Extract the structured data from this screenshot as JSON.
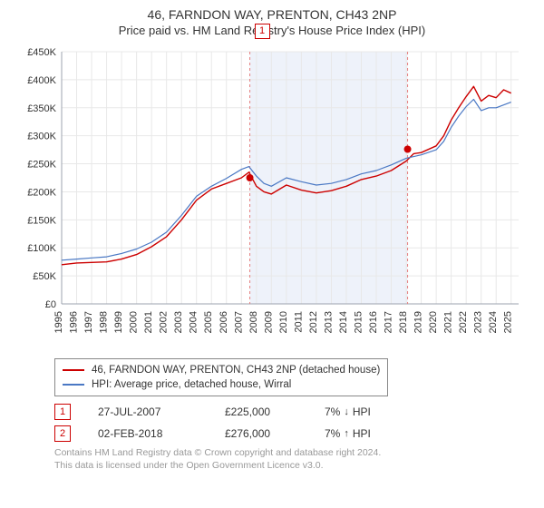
{
  "title": "46, FARNDON WAY, PRENTON, CH43 2NP",
  "subtitle": "Price paid vs. HM Land Registry's House Price Index (HPI)",
  "chart": {
    "type": "line",
    "background_color": "#ffffff",
    "grid_color": "#e8e8e8",
    "band_color": "#eef2fa",
    "x_years": [
      1995,
      1996,
      1997,
      1998,
      1999,
      2000,
      2001,
      2002,
      2003,
      2004,
      2005,
      2006,
      2007,
      2008,
      2009,
      2010,
      2011,
      2012,
      2013,
      2014,
      2015,
      2016,
      2017,
      2018,
      2019,
      2020,
      2021,
      2022,
      2023,
      2024,
      2025
    ],
    "x_range": [
      1995,
      2025.5
    ],
    "ylim": [
      0,
      450000
    ],
    "ytick_step": 50000,
    "yticklabels": [
      "£0",
      "£50K",
      "£100K",
      "£150K",
      "£200K",
      "£250K",
      "£300K",
      "£350K",
      "£400K",
      "£450K"
    ],
    "series": [
      {
        "name": "46, FARNDON WAY, PRENTON, CH43 2NP (detached house)",
        "color": "#cc0000",
        "width": 1.4,
        "x": [
          1995,
          1996,
          1997,
          1998,
          1999,
          2000,
          2001,
          2002,
          2003,
          2004,
          2005,
          2006,
          2007,
          2007.5,
          2008,
          2008.5,
          2009,
          2010,
          2011,
          2012,
          2013,
          2014,
          2015,
          2016,
          2017,
          2018,
          2018.5,
          2019,
          2020,
          2020.5,
          2021,
          2021.5,
          2022,
          2022.5,
          2023,
          2023.5,
          2024,
          2024.5,
          2025
        ],
        "y": [
          70000,
          73000,
          74000,
          75000,
          80000,
          88000,
          102000,
          120000,
          150000,
          185000,
          205000,
          215000,
          225000,
          235000,
          210000,
          200000,
          196000,
          212000,
          203000,
          198000,
          202000,
          210000,
          222000,
          228000,
          238000,
          255000,
          268000,
          270000,
          282000,
          300000,
          328000,
          350000,
          370000,
          388000,
          362000,
          372000,
          368000,
          382000,
          376000
        ]
      },
      {
        "name": "HPI: Average price, detached house, Wirral",
        "color": "#4a78c4",
        "width": 1.2,
        "x": [
          1995,
          1996,
          1997,
          1998,
          1999,
          2000,
          2001,
          2002,
          2003,
          2004,
          2005,
          2006,
          2007,
          2007.5,
          2008,
          2008.5,
          2009,
          2010,
          2011,
          2012,
          2013,
          2014,
          2015,
          2016,
          2017,
          2018,
          2019,
          2020,
          2020.5,
          2021,
          2021.5,
          2022,
          2022.5,
          2023,
          2023.5,
          2024,
          2025
        ],
        "y": [
          78000,
          80000,
          82000,
          84000,
          90000,
          98000,
          110000,
          128000,
          158000,
          192000,
          210000,
          224000,
          240000,
          245000,
          228000,
          215000,
          210000,
          225000,
          218000,
          212000,
          215000,
          222000,
          232000,
          238000,
          248000,
          260000,
          266000,
          275000,
          290000,
          315000,
          335000,
          352000,
          365000,
          345000,
          350000,
          350000,
          360000
        ]
      }
    ],
    "sale_markers": [
      {
        "num": "1",
        "x": 2007.56,
        "y": 225000,
        "label_y_offset": -170
      },
      {
        "num": "2",
        "x": 2018.09,
        "y": 276000,
        "label_y_offset": -190
      }
    ],
    "marker_line_color": "#e57f7f",
    "marker_dot_color": "#cc0000",
    "marker_box_border": "#cc0000",
    "marker_box_text": "#cc0000"
  },
  "legend": {
    "items": [
      {
        "color": "#cc0000",
        "label": "46, FARNDON WAY, PRENTON, CH43 2NP (detached house)"
      },
      {
        "color": "#4a78c4",
        "label": "HPI: Average price, detached house, Wirral"
      }
    ]
  },
  "sales": [
    {
      "num": "1",
      "color": "#cc0000",
      "date": "27-JUL-2007",
      "price": "£225,000",
      "diff_pct": "7%",
      "diff_arrow": "↓",
      "diff_label": "HPI"
    },
    {
      "num": "2",
      "color": "#cc0000",
      "date": "02-FEB-2018",
      "price": "£276,000",
      "diff_pct": "7%",
      "diff_arrow": "↑",
      "diff_label": "HPI"
    }
  ],
  "footer": {
    "line1": "Contains HM Land Registry data © Crown copyright and database right 2024.",
    "line2": "This data is licensed under the Open Government Licence v3.0."
  }
}
